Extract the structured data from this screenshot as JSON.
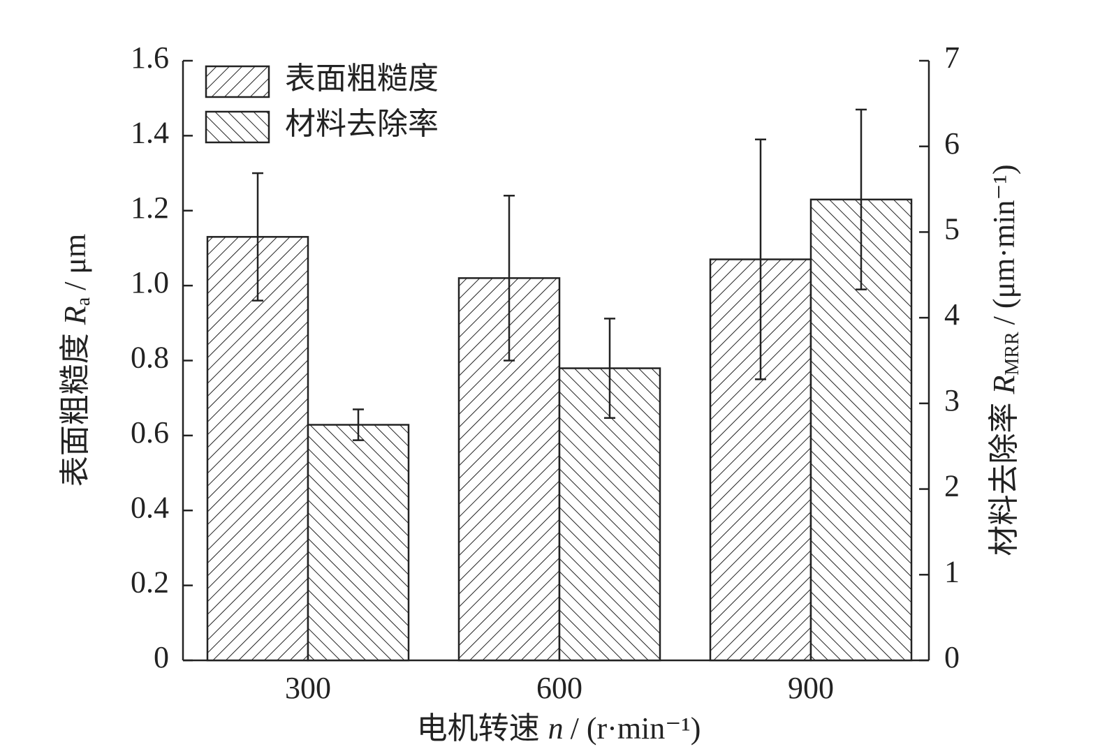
{
  "chart_data": {
    "type": "bar",
    "xlabel": [
      "电机转速",
      "n",
      "/ (r·min⁻¹)"
    ],
    "ylabel": [
      "表面粗糙度",
      "R",
      "a",
      "/ μm"
    ],
    "y2label": [
      "材料去除率",
      "R",
      "MRR",
      "/ (μm·min⁻¹)"
    ],
    "categories": [
      "300",
      "600",
      "900"
    ],
    "series": [
      {
        "name": "表面粗糙度",
        "color": "#222222",
        "hatch": "/",
        "values": [
          1.13,
          1.02,
          1.07
        ],
        "errors": [
          0.17,
          0.22,
          0.32
        ]
      },
      {
        "name": "材料去除率",
        "color": "#222222",
        "hatch": "\\",
        "axis": "y2",
        "values": [
          2.75,
          3.41,
          5.38
        ],
        "errors": [
          0.18,
          0.58,
          1.05
        ]
      }
    ],
    "ylim": [
      0,
      1.6
    ],
    "yticks": [
      0,
      {
        "value": 0.2,
        "label": "0.2"
      },
      {
        "value": 0.4,
        "label": "0.4"
      },
      {
        "value": 0.6,
        "label": "0.6"
      },
      {
        "value": 0.8,
        "label": "0.8"
      },
      {
        "value": 1.0,
        "label": "1.0"
      },
      {
        "value": 1.2,
        "label": "1.2"
      },
      {
        "value": 1.4,
        "label": "1.4"
      },
      {
        "value": 1.6,
        "label": "1.6"
      }
    ],
    "y2lim": [
      0,
      7
    ],
    "y2ticks": [
      0,
      1,
      2,
      3,
      4,
      5,
      6,
      7
    ],
    "legend": "top-left"
  }
}
